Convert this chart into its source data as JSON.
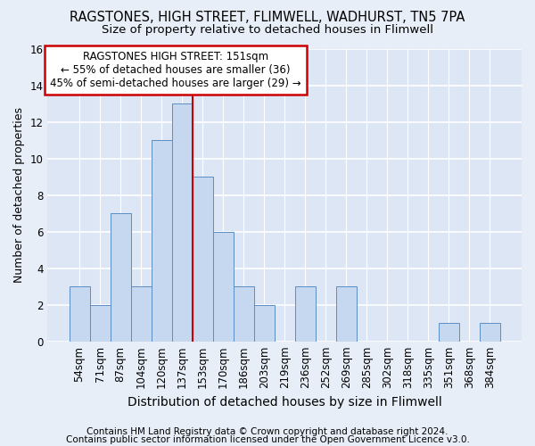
{
  "title": "RAGSTONES, HIGH STREET, FLIMWELL, WADHURST, TN5 7PA",
  "subtitle": "Size of property relative to detached houses in Flimwell",
  "xlabel": "Distribution of detached houses by size in Flimwell",
  "ylabel": "Number of detached properties",
  "categories": [
    "54sqm",
    "71sqm",
    "87sqm",
    "104sqm",
    "120sqm",
    "137sqm",
    "153sqm",
    "170sqm",
    "186sqm",
    "203sqm",
    "219sqm",
    "236sqm",
    "252sqm",
    "269sqm",
    "285sqm",
    "302sqm",
    "318sqm",
    "335sqm",
    "351sqm",
    "368sqm",
    "384sqm"
  ],
  "values": [
    3,
    2,
    7,
    3,
    11,
    13,
    9,
    6,
    3,
    2,
    0,
    3,
    0,
    3,
    0,
    0,
    0,
    0,
    1,
    0,
    1
  ],
  "bar_color": "#c5d8f0",
  "bar_edge_color": "#5b8ec4",
  "highlight_index": 6,
  "highlight_line_color": "#cc0000",
  "ylim": [
    0,
    16
  ],
  "yticks": [
    0,
    2,
    4,
    6,
    8,
    10,
    12,
    14,
    16
  ],
  "annotation_text": "RAGSTONES HIGH STREET: 151sqm\n← 55% of detached houses are smaller (36)\n45% of semi-detached houses are larger (29) →",
  "annotation_box_color": "#ffffff",
  "annotation_box_edge": "#cc0000",
  "footnote1": "Contains HM Land Registry data © Crown copyright and database right 2024.",
  "footnote2": "Contains public sector information licensed under the Open Government Licence v3.0.",
  "background_color": "#e8eef7",
  "plot_bg_color": "#dce6f5",
  "grid_color": "#ffffff",
  "title_fontsize": 10.5,
  "subtitle_fontsize": 9.5,
  "xlabel_fontsize": 10,
  "ylabel_fontsize": 9,
  "tick_fontsize": 8.5,
  "annotation_fontsize": 8.5,
  "footnote_fontsize": 7.5
}
